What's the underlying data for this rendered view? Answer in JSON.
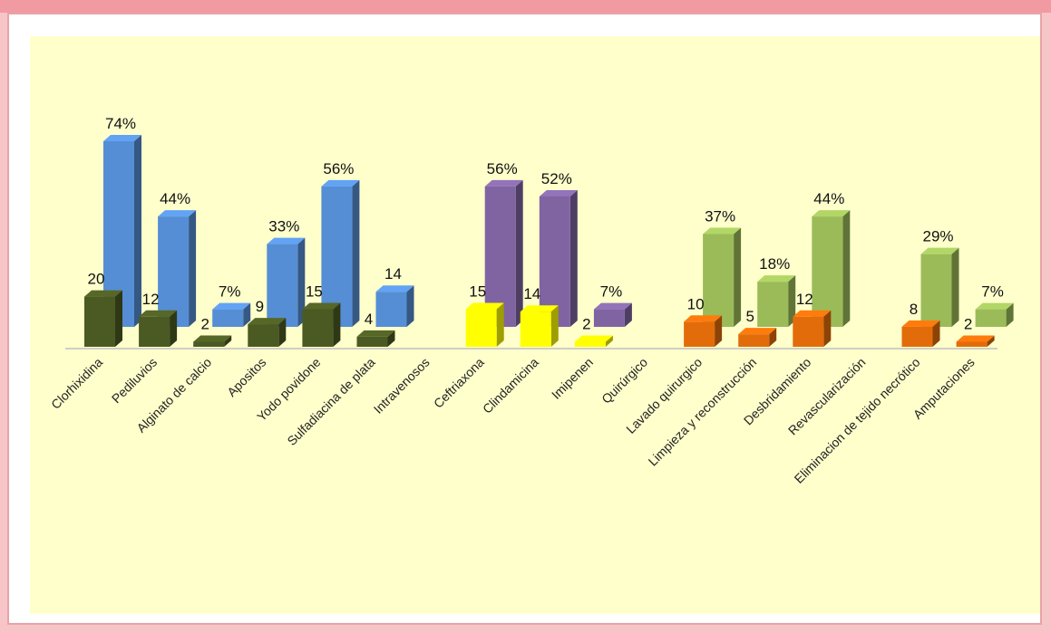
{
  "chart_data": {
    "type": "bar",
    "categories": [
      "Clorhixidina",
      "Pediluvios",
      "Alginato de calcio",
      "Apositos",
      "Yodo povidone",
      "Sulfadiacina de plata",
      "Intravenosos",
      "Ceftriaxona",
      "Clindamicina",
      "Imipenen",
      "Quirúrgico",
      "Lavado quirurgico",
      "Limpieza y reconstrucción",
      "Desbridamiento",
      "Revascularización",
      "Eliminacion de tejido necrótico",
      "Amputaciones"
    ],
    "series": [
      {
        "values": [
          20,
          12,
          2,
          9,
          15,
          4,
          null,
          15,
          14,
          2,
          null,
          10,
          5,
          12,
          null,
          8,
          2
        ],
        "labels": [
          "20",
          "12",
          "2",
          "9",
          "15",
          "4",
          "",
          "15",
          "14",
          "2",
          "",
          "10",
          "5",
          "12",
          "",
          "8",
          "2"
        ]
      },
      {
        "values": [
          74,
          44,
          7,
          33,
          56,
          14,
          null,
          56,
          52,
          7,
          null,
          37,
          18,
          44,
          null,
          29,
          7
        ],
        "labels": [
          "74%",
          "44%",
          "7%",
          "33%",
          "56%",
          "14",
          "",
          "56%",
          "52%",
          "7%",
          "",
          "37%",
          "18%",
          "44%",
          "",
          "29%",
          "7%"
        ]
      }
    ],
    "colors": {
      "front": [
        "#4b5a22",
        "#4b5a22",
        "#4b5a22",
        "#4b5a22",
        "#4b5a22",
        "#4b5a22",
        null,
        "#ffff00",
        "#ffff00",
        "#ffff00",
        null,
        "#e36c0a",
        "#e36c0a",
        "#e36c0a",
        null,
        "#e36c0a",
        "#e36c0a"
      ],
      "back": [
        "#558ed5",
        "#558ed5",
        "#558ed5",
        "#558ed5",
        "#558ed5",
        "#558ed5",
        null,
        "#8064a2",
        "#8064a2",
        "#8064a2",
        null,
        "#9bbb59",
        "#9bbb59",
        "#9bbb59",
        null,
        "#9bbb59",
        "#9bbb59"
      ]
    },
    "ylim": [
      0,
      74
    ],
    "grid": false,
    "legend": "none"
  }
}
